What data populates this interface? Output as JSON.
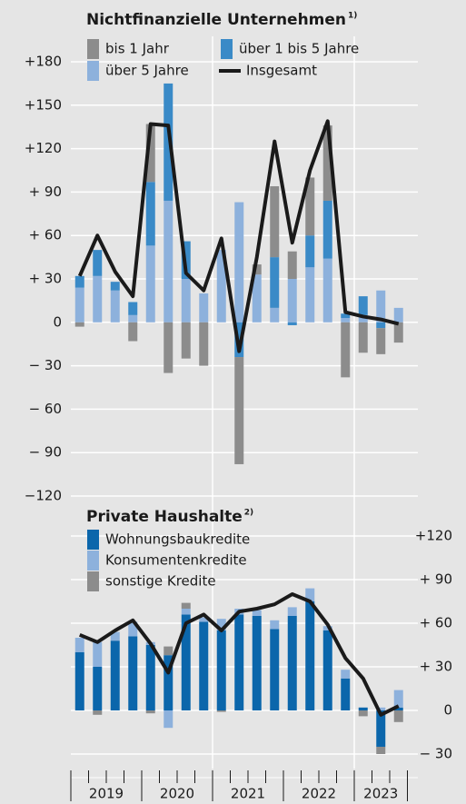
{
  "chart_data": [
    {
      "type": "bar",
      "title": "Nichtfinanzielle Unternehmen",
      "title_note": "1)",
      "y_axis_side": "left",
      "grid": true,
      "categories": [
        null,
        null,
        null,
        null,
        null,
        null,
        null,
        null,
        null,
        null,
        null,
        null,
        null,
        null,
        null,
        null,
        null,
        null,
        null
      ],
      "ylim": [
        -120,
        180
      ],
      "yticks": [
        {
          "value": 180,
          "label": "+180"
        },
        {
          "value": 150,
          "label": "+150"
        },
        {
          "value": 120,
          "label": "+120"
        },
        {
          "value": 90,
          "label": "+ 90"
        },
        {
          "value": 60,
          "label": "+ 60"
        },
        {
          "value": 30,
          "label": "+ 30"
        },
        0,
        {
          "value": -30,
          "label": "− 30"
        },
        {
          "value": -60,
          "label": "− 60"
        },
        {
          "value": -90,
          "label": "− 90"
        },
        {
          "value": -120,
          "label": "−120"
        }
      ],
      "series": [
        {
          "name": "über 5 Jahre",
          "color": "#8db1dc",
          "values": [
            24,
            32,
            22,
            5,
            53,
            84,
            30,
            20,
            50,
            83,
            33,
            10,
            30,
            38,
            44,
            3,
            5,
            22,
            10
          ]
        },
        {
          "name": "über 1 bis 5 Jahre",
          "color": "#3a8ac7",
          "values": [
            8,
            18,
            6,
            9,
            44,
            81,
            26,
            0,
            0,
            -24,
            0,
            35,
            -2,
            22,
            40,
            3,
            13,
            -4,
            0
          ]
        },
        {
          "name": "bis 1 Jahr",
          "color": "#8c8c8c",
          "values": [
            -3,
            0,
            0,
            -13,
            40,
            -35,
            -25,
            -30,
            0,
            -74,
            7,
            49,
            19,
            40,
            52,
            -38,
            -21,
            -18,
            -14
          ]
        },
        {
          "name": "Insgesamt",
          "type": "line",
          "color": "#1a1a1a",
          "values": [
            32,
            60,
            35,
            18,
            137,
            136,
            34,
            22,
            58,
            -20,
            45,
            125,
            55,
            105,
            139,
            7,
            4,
            2,
            -1
          ]
        }
      ]
    },
    {
      "type": "bar",
      "title": "Private Haushalte",
      "title_note": "2)",
      "y_axis_side": "right",
      "grid": true,
      "categories": [
        null,
        null,
        null,
        null,
        null,
        null,
        null,
        null,
        null,
        null,
        null,
        null,
        null,
        null,
        null,
        null,
        null,
        null,
        null
      ],
      "years": [
        "2019",
        "2020",
        "2021",
        "2022",
        "2023"
      ],
      "ylim": [
        -40,
        135
      ],
      "yticks": [
        {
          "value": 120,
          "label": "+120"
        },
        {
          "value": 90,
          "label": "+ 90"
        },
        {
          "value": 60,
          "label": "+ 60"
        },
        {
          "value": 30,
          "label": "+ 30"
        },
        0,
        {
          "value": -30,
          "label": "− 30"
        }
      ],
      "series": [
        {
          "name": "Wohnungsbaukredite",
          "color": "#0b66ab",
          "values": [
            40,
            30,
            48,
            51,
            45,
            38,
            66,
            61,
            55,
            66,
            65,
            56,
            65,
            75,
            55,
            22,
            2,
            -25,
            2
          ]
        },
        {
          "name": "Konsumentenkredite",
          "color": "#8db1dc",
          "values": [
            10,
            17,
            6,
            10,
            2,
            -12,
            4,
            3,
            8,
            4,
            4,
            6,
            6,
            9,
            3,
            6,
            0,
            2,
            12
          ]
        },
        {
          "name": "sonstige Kredite",
          "color": "#8c8c8c",
          "values": [
            0,
            -3,
            0,
            0,
            -2,
            6,
            4,
            0,
            -1,
            0,
            0,
            0,
            0,
            0,
            0,
            0,
            -4,
            -5,
            -8
          ]
        },
        {
          "type": "line",
          "color": "#1a1a1a",
          "values": [
            52,
            47,
            55,
            62,
            46,
            26,
            60,
            66,
            55,
            68,
            70,
            73,
            80,
            75,
            59,
            36,
            22,
            -3,
            3
          ]
        }
      ]
    }
  ]
}
